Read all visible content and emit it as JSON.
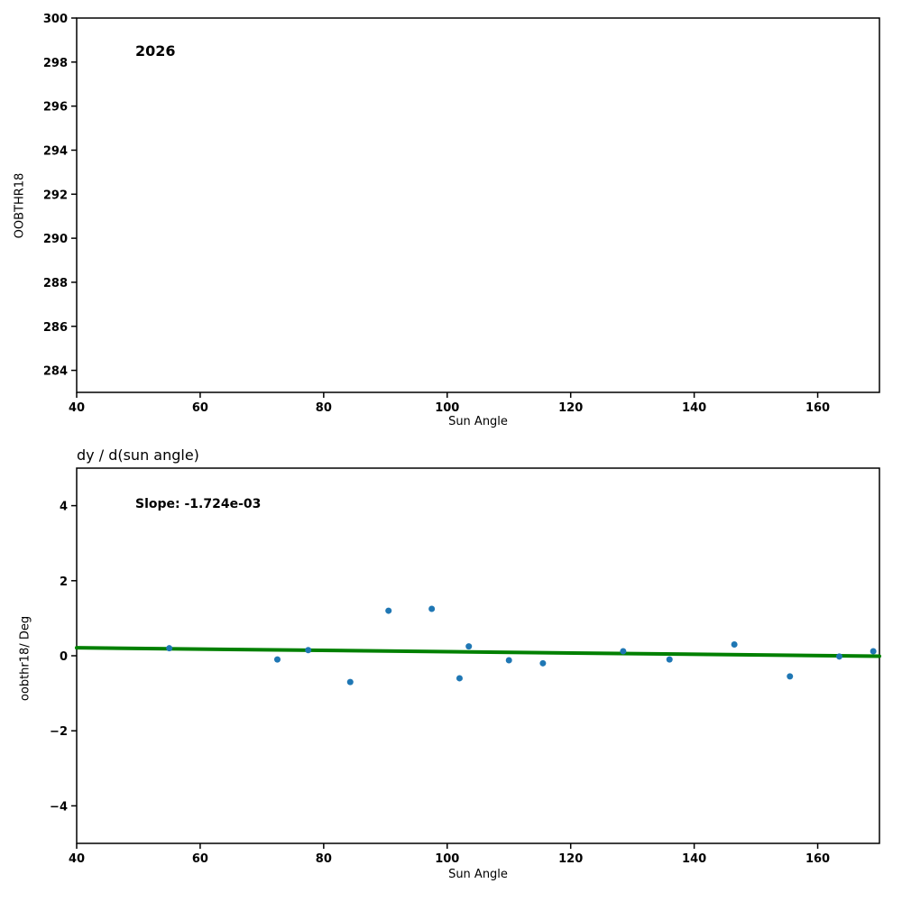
{
  "chart_data": [
    {
      "type": "scatter",
      "title": "",
      "annotation": "2026",
      "xlabel": "Sun Angle",
      "ylabel": "OOBTHR18",
      "xlim": [
        40,
        170
      ],
      "ylim": [
        283,
        300
      ],
      "xticks": [
        40,
        60,
        80,
        100,
        120,
        140,
        160
      ],
      "yticks": [
        284,
        286,
        288,
        290,
        292,
        294,
        296,
        298,
        300
      ],
      "grid": false,
      "points": [],
      "point_color": "#1f77b4"
    },
    {
      "type": "scatter",
      "title": "dy / d(sun angle)",
      "annotation": "Slope: -1.724e-03",
      "slope": "-1.724e-03",
      "xlabel": "Sun Angle",
      "ylabel": "oobthr18/ Deg",
      "xlim": [
        40,
        170
      ],
      "ylim": [
        -5,
        5
      ],
      "xticks": [
        40,
        60,
        80,
        100,
        120,
        140,
        160
      ],
      "yticks": [
        -4,
        -2,
        0,
        2,
        4
      ],
      "grid": false,
      "points": [
        [
          55.0,
          0.2
        ],
        [
          72.5,
          -0.1
        ],
        [
          77.5,
          0.15
        ],
        [
          84.3,
          -0.7
        ],
        [
          90.5,
          1.2
        ],
        [
          97.5,
          1.25
        ],
        [
          102.0,
          -0.6
        ],
        [
          103.5,
          0.25
        ],
        [
          110.0,
          -0.12
        ],
        [
          115.5,
          -0.2
        ],
        [
          128.5,
          0.12
        ],
        [
          136.0,
          -0.1
        ],
        [
          146.5,
          0.3
        ],
        [
          155.5,
          -0.55
        ],
        [
          163.5,
          -0.02
        ],
        [
          169.0,
          0.12
        ]
      ],
      "point_color": "#1f77b4",
      "trend_line": {
        "x": [
          40,
          170
        ],
        "y": [
          0.212,
          -0.012
        ],
        "color": "#008000"
      }
    }
  ]
}
